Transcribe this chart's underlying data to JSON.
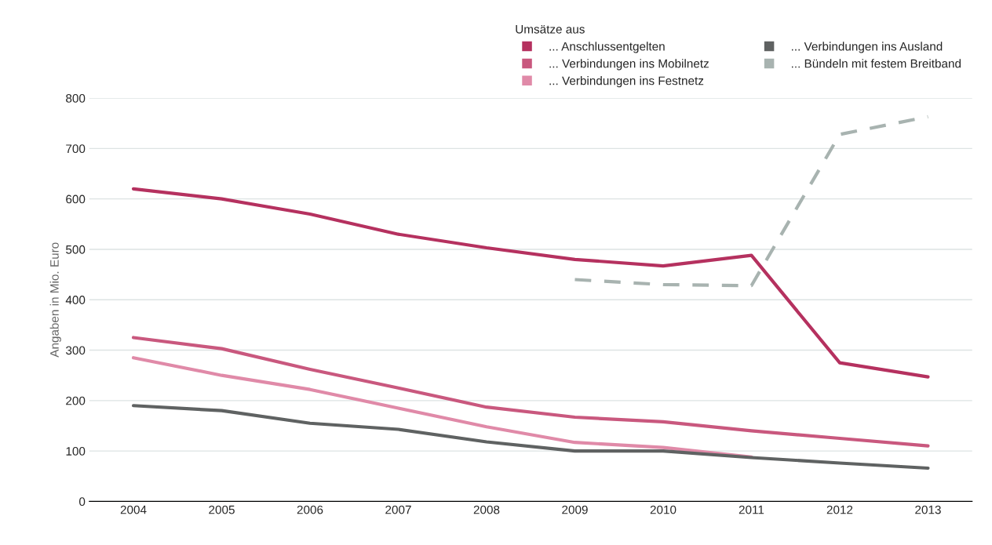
{
  "chart_data": {
    "type": "line",
    "ylabel": "Angaben in Mio. Euro",
    "legend_title": "Umsätze aus",
    "categories": [
      "2004",
      "2005",
      "2006",
      "2007",
      "2008",
      "2009",
      "2010",
      "2011",
      "2012",
      "2013"
    ],
    "series": [
      {
        "name": "... Anschlussentgelten",
        "color": "#b5315f",
        "values": [
          620,
          600,
          570,
          530,
          503,
          480,
          467,
          488,
          275,
          247
        ]
      },
      {
        "name": "... Verbindungen ins Mobilnetz",
        "color": "#c9587e",
        "values": [
          325,
          303,
          262,
          225,
          187,
          167,
          158,
          140,
          125,
          110
        ]
      },
      {
        "name": "... Verbindungen ins Festnetz",
        "color": "#e08aa8",
        "values": [
          285,
          250,
          222,
          185,
          148,
          117,
          107,
          88,
          null,
          null
        ]
      },
      {
        "name": "... Verbindungen ins Ausland",
        "color": "#5f6262",
        "values": [
          190,
          180,
          155,
          143,
          118,
          100,
          100,
          87,
          76,
          66
        ]
      },
      {
        "name": "... Bündeln mit festem Breitband",
        "color": "#a8b3b0",
        "line_style": "dashed",
        "values": [
          null,
          null,
          null,
          null,
          null,
          440,
          430,
          428,
          728,
          763
        ]
      }
    ],
    "ylim": [
      0,
      800
    ],
    "yticks": [
      0,
      100,
      200,
      300,
      400,
      500,
      600,
      700,
      800
    ],
    "grid": "y",
    "legend": "top right",
    "marker": "none",
    "line_style": "solid"
  }
}
